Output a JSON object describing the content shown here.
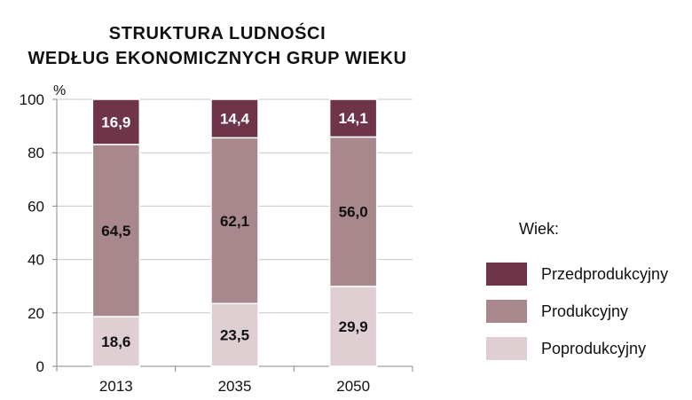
{
  "chart_data": {
    "type": "bar",
    "stacked": true,
    "title": [
      "STRUKTURA  LUDNOŚCI",
      "WEDŁUG  EKONOMICZNYCH  GRUP  WIEKU"
    ],
    "ylabel": "%",
    "ylim": [
      0,
      100
    ],
    "yticks": [
      0,
      20,
      40,
      60,
      80,
      100
    ],
    "grid": true,
    "categories": [
      "2013",
      "2035",
      "2050"
    ],
    "series": [
      {
        "name": "Poprodukcyjny",
        "color": "#e0cfd2",
        "values": [
          18.6,
          23.5,
          29.9
        ],
        "labels": [
          "18,6",
          "23,5",
          "29,9"
        ],
        "label_color": "#111111"
      },
      {
        "name": "Produkcyjny",
        "color": "#a8878d",
        "values": [
          64.5,
          62.1,
          56.0
        ],
        "labels": [
          "64,5",
          "62,1",
          "56,0"
        ],
        "label_color": "#111111"
      },
      {
        "name": "Przedprodukcyjny",
        "color": "#6e3548",
        "values": [
          16.9,
          14.4,
          14.1
        ],
        "labels": [
          "16,9",
          "14,4",
          "14,1"
        ],
        "label_color": "#ffffff"
      }
    ],
    "legend": {
      "title": "Wiek:",
      "position": "right",
      "order": [
        "Przedprodukcyjny",
        "Produkcyjny",
        "Poprodukcyjny"
      ]
    }
  }
}
